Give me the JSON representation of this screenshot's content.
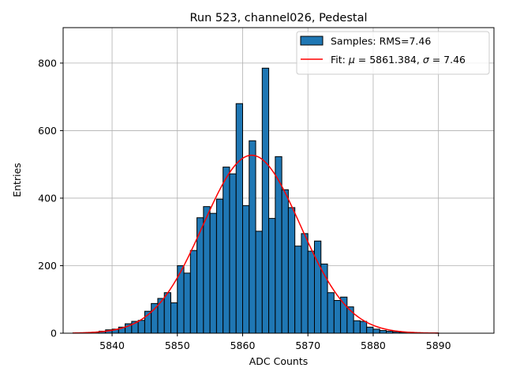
{
  "chart_data": {
    "type": "bar",
    "title": "Run 523, channel026, Pedestal",
    "xlabel": "ADC Counts",
    "ylabel": "Entries",
    "xlim": [
      5832.5,
      5898.5
    ],
    "ylim": [
      0,
      905
    ],
    "xticks": [
      5840,
      5850,
      5860,
      5870,
      5880,
      5890
    ],
    "yticks": [
      0,
      200,
      400,
      600,
      800
    ],
    "grid": true,
    "legend_position": "top-right",
    "colors": {
      "bar_fill": "#1f77b4",
      "bar_edge": "#000000",
      "fit_line": "#ff0000",
      "grid": "#b0b0b0"
    },
    "histogram": {
      "name": "Samples: RMS=7.46",
      "bin_width": 1,
      "bin_starts": [
        5834,
        5835,
        5836,
        5837,
        5838,
        5839,
        5840,
        5841,
        5842,
        5843,
        5844,
        5845,
        5846,
        5847,
        5848,
        5849,
        5850,
        5851,
        5852,
        5853,
        5854,
        5855,
        5856,
        5857,
        5858,
        5859,
        5860,
        5861,
        5862,
        5863,
        5864,
        5865,
        5866,
        5867,
        5868,
        5869,
        5870,
        5871,
        5872,
        5873,
        5874,
        5875,
        5876,
        5877,
        5878,
        5879,
        5880,
        5881,
        5882,
        5883,
        5884,
        5885,
        5886,
        5887,
        5888,
        5889,
        5890
      ],
      "counts": [
        1,
        1,
        2,
        3,
        6,
        10,
        12,
        18,
        28,
        35,
        38,
        65,
        88,
        103,
        120,
        90,
        200,
        178,
        245,
        342,
        375,
        355,
        397,
        492,
        472,
        680,
        378,
        570,
        302,
        785,
        340,
        523,
        425,
        372,
        258,
        295,
        243,
        273,
        205,
        120,
        97,
        107,
        78,
        37,
        35,
        18,
        12,
        8,
        6,
        4,
        3,
        2,
        1,
        1,
        1,
        1,
        0
      ]
    },
    "fit": {
      "name": "Fit: μ = 5861.384, σ = 7.46",
      "mu": 5861.384,
      "sigma": 7.46,
      "amplitude": 527,
      "x_range": [
        5834,
        5890
      ]
    },
    "legend": [
      {
        "label": "Samples: RMS=7.46",
        "kind": "patch"
      },
      {
        "label_prefix": "Fit: ",
        "mu_symbol": "μ",
        "mu_text": " = 5861.384, ",
        "sigma_symbol": "σ",
        "sigma_text": " = 7.46",
        "kind": "line"
      }
    ]
  }
}
